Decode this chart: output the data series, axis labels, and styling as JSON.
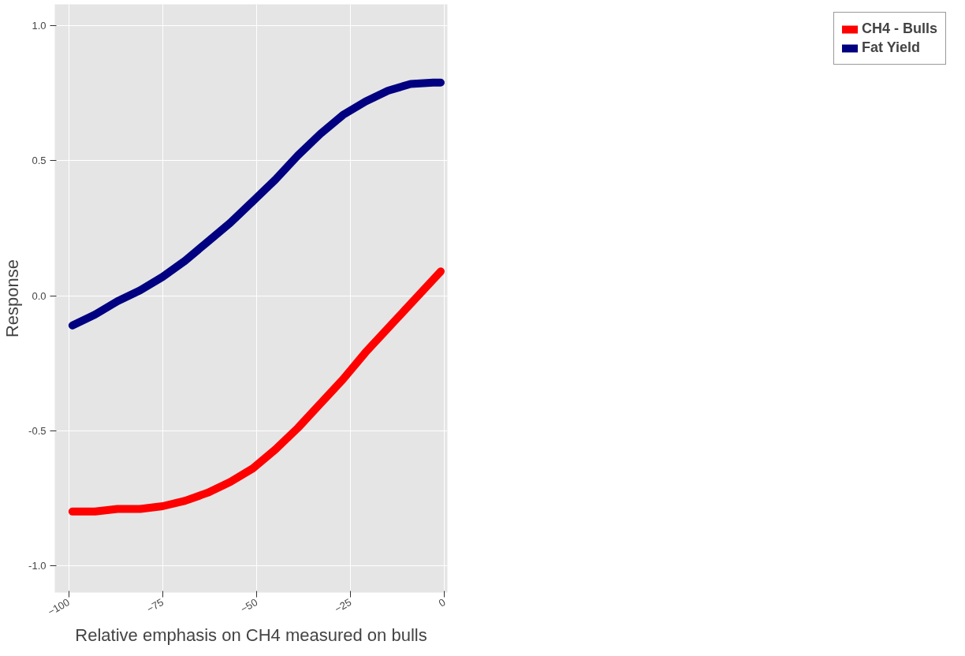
{
  "chart_data": {
    "type": "line",
    "xlabel": "Relative emphasis on CH4 measured on bulls",
    "ylabel": "Response",
    "x": [
      -99,
      -93,
      -87,
      -81,
      -75,
      -69,
      -63,
      -57,
      -51,
      -45,
      -39,
      -33,
      -27,
      -21,
      -15,
      -9,
      -3,
      -1
    ],
    "series": [
      {
        "name": "CH4 - Bulls",
        "color": "#ff0000",
        "values": [
          -0.8,
          -0.8,
          -0.79,
          -0.79,
          -0.78,
          -0.76,
          -0.73,
          -0.69,
          -0.64,
          -0.57,
          -0.49,
          -0.4,
          -0.31,
          -0.21,
          -0.12,
          -0.03,
          0.06,
          0.09
        ]
      },
      {
        "name": "Fat Yield",
        "color": "#000080",
        "values": [
          -0.11,
          -0.07,
          -0.02,
          0.02,
          0.07,
          0.13,
          0.2,
          0.27,
          0.35,
          0.43,
          0.52,
          0.6,
          0.67,
          0.72,
          0.76,
          0.785,
          0.79,
          0.79
        ]
      }
    ],
    "xlim": [
      -103.7,
      0.8
    ],
    "ylim": [
      -1.1,
      1.08
    ],
    "xticks": [
      -100,
      -75,
      -50,
      -25,
      0
    ],
    "yticks": [
      {
        "value": -1,
        "label": "-1.0"
      },
      {
        "value": -0.5,
        "label": "-0.5"
      },
      {
        "value": 0,
        "label": "0.0"
      },
      {
        "value": 0.5,
        "label": "0.5"
      },
      {
        "value": 1,
        "label": "1.0"
      }
    ],
    "grid": true,
    "legend": "right",
    "line_style": "solid"
  }
}
